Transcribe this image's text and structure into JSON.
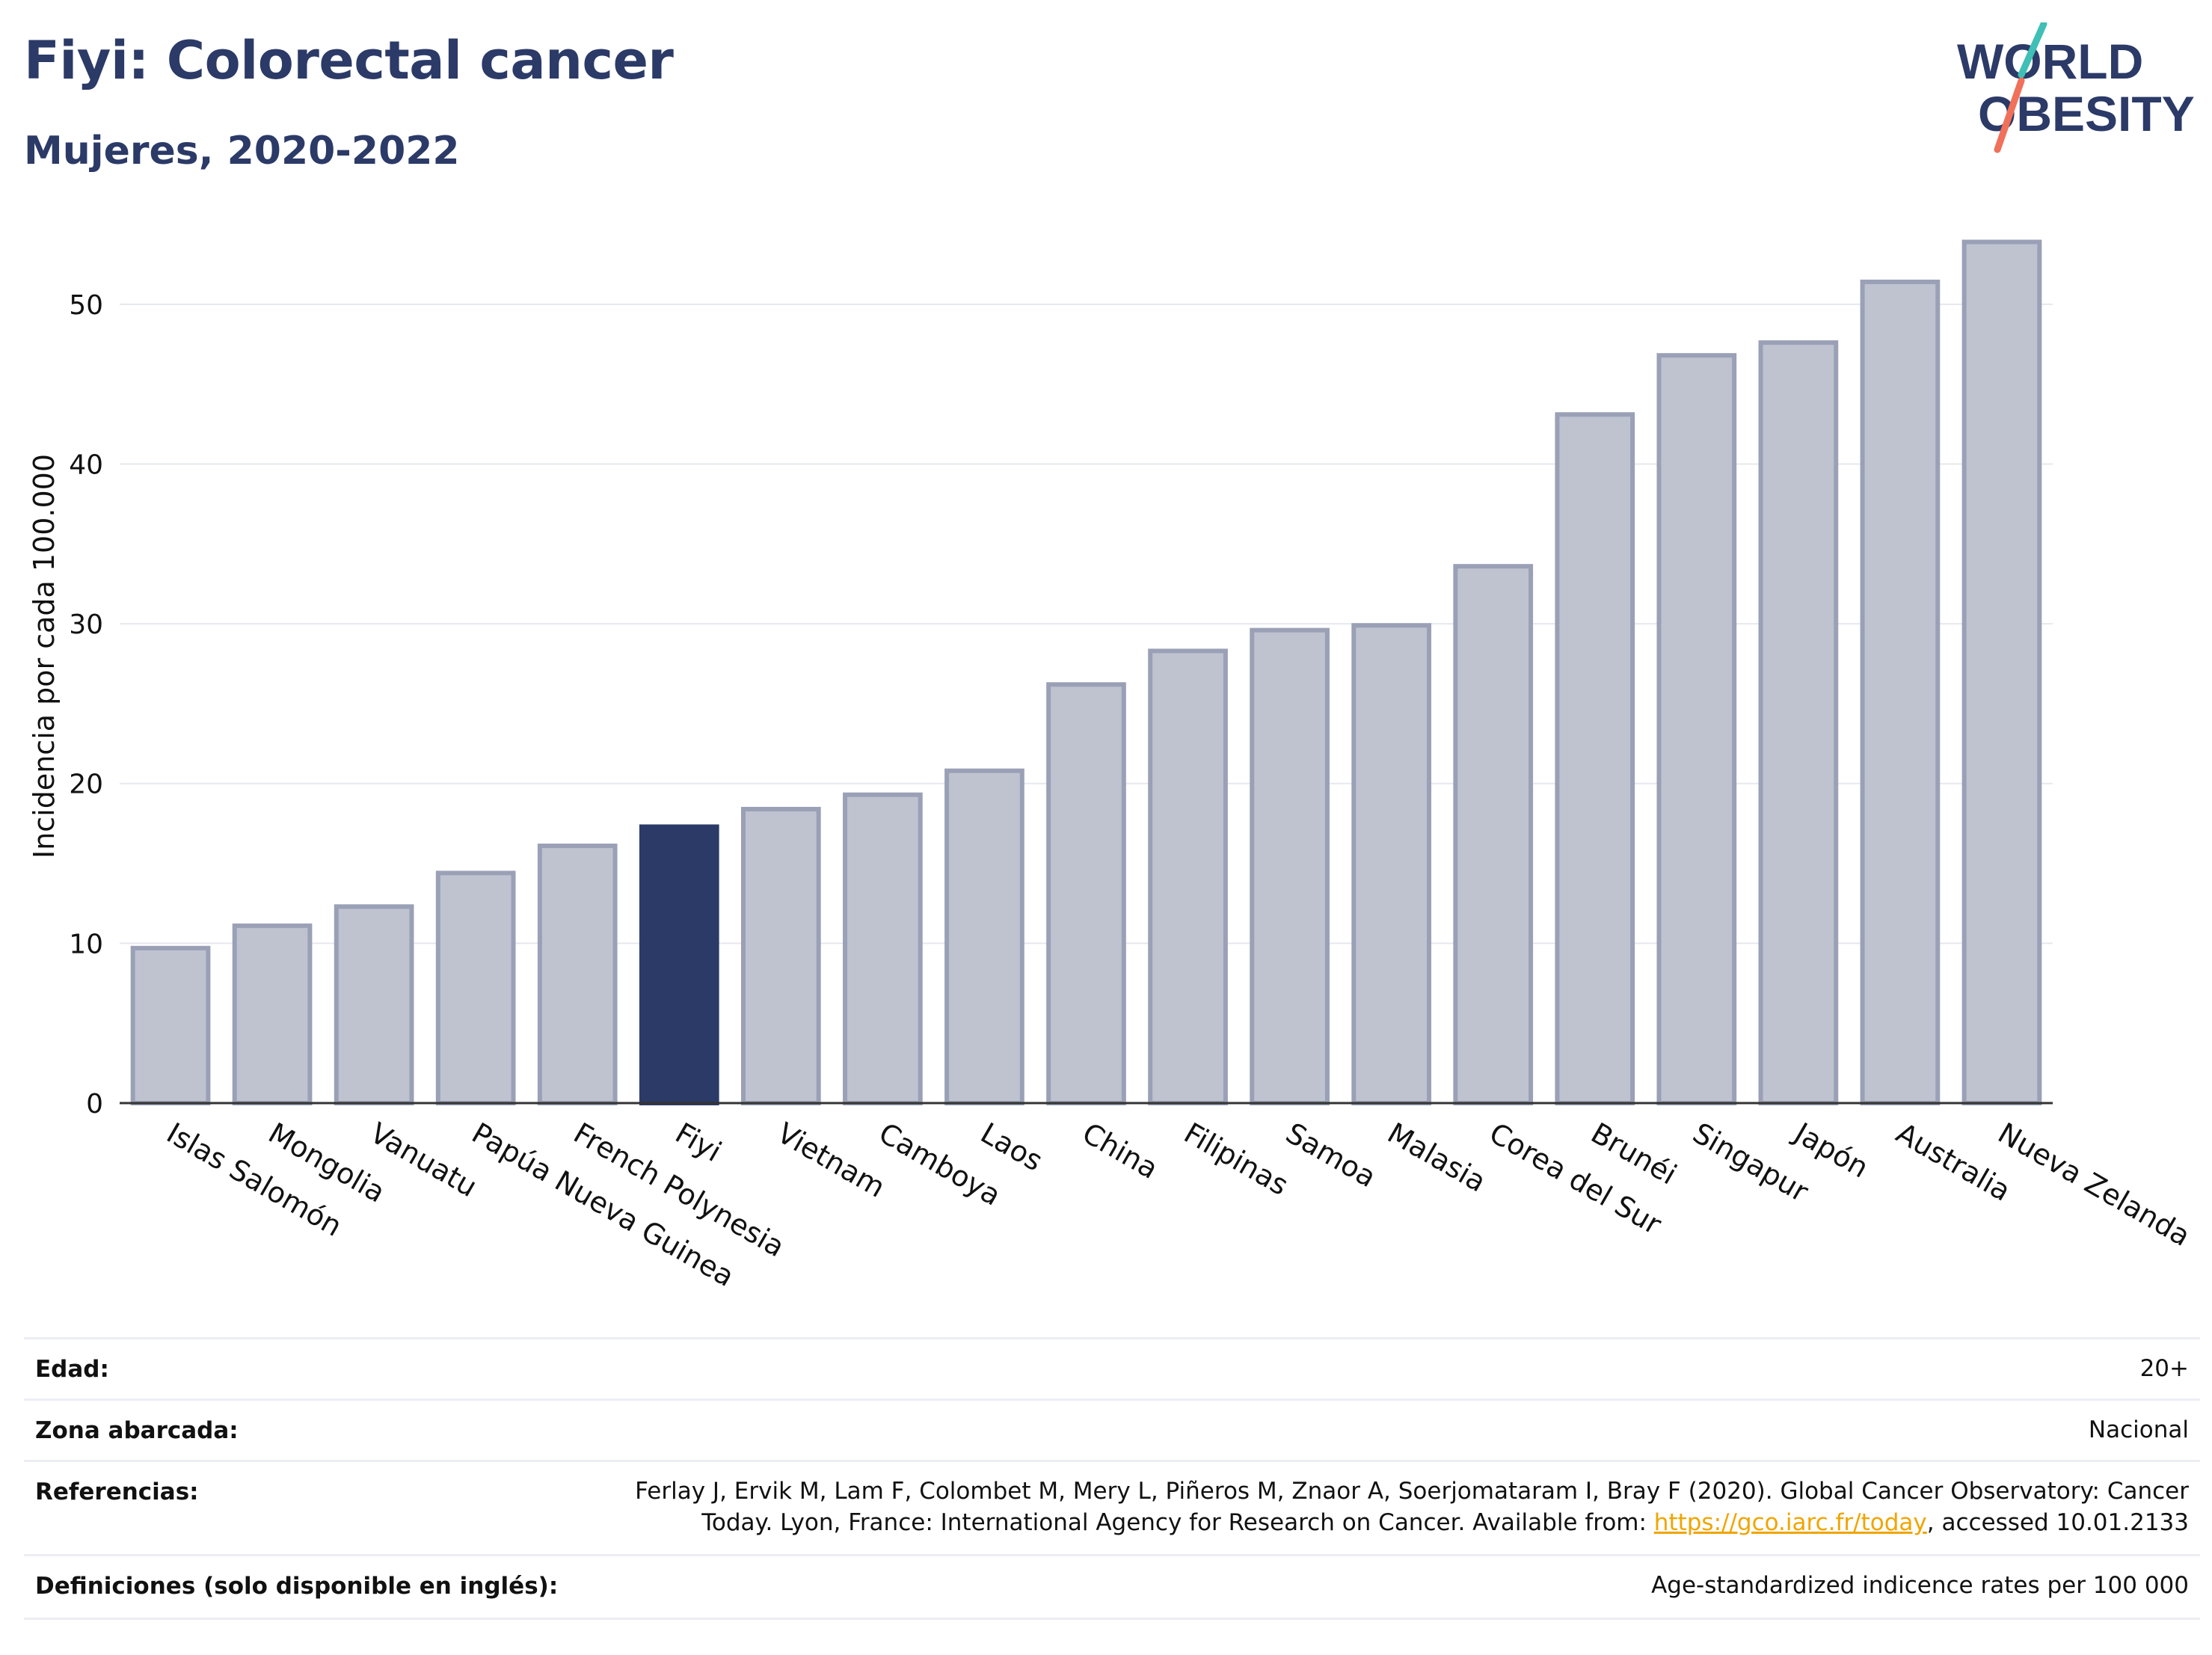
{
  "header": {
    "title": "Fiyi: Colorectal cancer",
    "subtitle": "Mujeres, 2020-2022"
  },
  "logo": {
    "line1": "WORLD",
    "line2": "OBESITY"
  },
  "colors": {
    "brand": "#2b3a67",
    "bar_default": "#bfc3d0",
    "bar_border": "#9aa0b6",
    "bar_highlight": "#2b3a67",
    "logo_teal": "#3fbfb5",
    "logo_coral": "#f0705a",
    "link": "#f0a500"
  },
  "chart_data": {
    "type": "bar",
    "ylabel": "Incidencia por cada 100.000",
    "xlabel": "",
    "ylim": [
      0,
      55
    ],
    "yticks": [
      0,
      10,
      20,
      30,
      40,
      50
    ],
    "grid": true,
    "highlight": "Fiyi",
    "categories": [
      "Islas Salomón",
      "Mongolia",
      "Vanuatu",
      "Papúa Nueva Guinea",
      "French Polynesia",
      "Fiyi",
      "Vietnam",
      "Camboya",
      "Laos",
      "China",
      "Filipinas",
      "Samoa",
      "Malasia",
      "Corea del Sur",
      "Brunéi",
      "Singapur",
      "Japón",
      "Australia",
      "Nueva Zelanda"
    ],
    "values": [
      9.7,
      11.1,
      12.3,
      14.4,
      16.1,
      17.3,
      18.4,
      19.3,
      20.8,
      26.2,
      28.3,
      29.6,
      29.9,
      33.6,
      43.1,
      46.8,
      47.6,
      51.4,
      53.9
    ]
  },
  "metadata": {
    "rows": [
      {
        "label": "Edad:",
        "value": "20+"
      },
      {
        "label": "Zona abarcada:",
        "value": "Nacional"
      },
      {
        "label": "Referencias:",
        "value_line1": "Ferlay J, Ervik M, Lam F, Colombet M, Mery L, Piñeros M, Znaor A, Soerjomataram I, Bray F (2020). Global Cancer Observatory: Cancer",
        "value_line2_prefix": "Today. Lyon, France: International Agency for Research on Cancer. Available from: ",
        "link_text": "https://gco.iarc.fr/today",
        "value_line2_suffix": ", accessed 10.01.2133"
      },
      {
        "label": "Definiciones (solo disponible en inglés):",
        "value": "Age-standardized indicence rates per 100 000"
      }
    ]
  }
}
